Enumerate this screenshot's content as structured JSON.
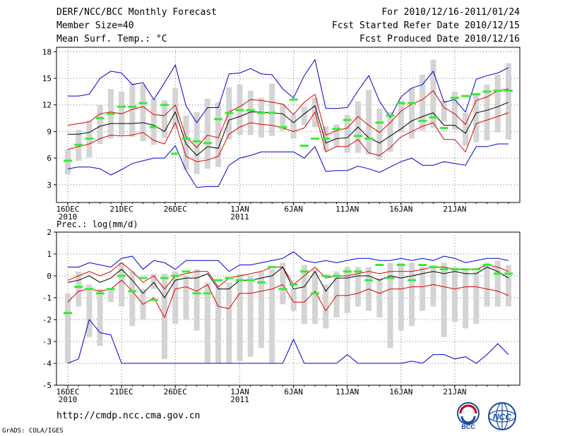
{
  "header": {
    "title": "DERF/NCC/BCC Monthly Forecast",
    "member_size": "Member Size=40",
    "variable": "Mean Surf. Temp.: °C",
    "period": "For 2010/12/16-2011/01/24",
    "fcst_started": "Fcst Started Refer Date 2010/12/15",
    "fcst_produced": "Fcst Produced Date 2010/12/16"
  },
  "footer": {
    "url": "http://cmdp.ncc.cma.gov.cn",
    "grads": "GrADS: COLA/IGES",
    "bcc_logo_text": "BCC",
    "ncc_logo_text": "NCC"
  },
  "colors": {
    "max_line": "#0000cc",
    "spread_lines": "#dd0000",
    "mean_line": "#000000",
    "box": "#d4d4d4",
    "marker": "#33ee33"
  },
  "chart_data": [
    {
      "type": "line",
      "title": "Mean Surf. Temp.: °C",
      "ylim": [
        1,
        18.5
      ],
      "yticks": [
        3,
        6,
        9,
        12,
        15,
        18
      ],
      "xticks": [
        {
          "day": 0,
          "label": "16DEC",
          "sub": "2010"
        },
        {
          "day": 5,
          "label": "21DEC",
          "sub": ""
        },
        {
          "day": 10,
          "label": "26DEC",
          "sub": ""
        },
        {
          "day": 16,
          "label": "1JAN",
          "sub": "2011"
        },
        {
          "day": 21,
          "label": "6JAN",
          "sub": ""
        },
        {
          "day": 26,
          "label": "11JAN",
          "sub": ""
        },
        {
          "day": 31,
          "label": "16JAN",
          "sub": ""
        },
        {
          "day": 36,
          "label": "21JAN",
          "sub": ""
        }
      ],
      "grid": true,
      "series": [
        {
          "name": "max",
          "values": [
            13,
            13,
            13.2,
            15,
            15.8,
            15.6,
            14.3,
            14.5,
            12.6,
            14.5,
            16.5,
            11.9,
            10,
            11.7,
            11.7,
            15.5,
            15.6,
            16.1,
            15.5,
            15.4,
            13.8,
            12.8,
            15.3,
            17.1,
            11.6,
            11.6,
            11.7,
            13.6,
            15.3,
            12.4,
            10.6,
            12.9,
            13.9,
            14.3,
            15.8,
            12.3,
            12.6,
            11.2,
            14.9,
            15.3,
            15.6,
            16.2
          ]
        },
        {
          "name": "upper",
          "values": [
            9.7,
            9.9,
            10.1,
            11,
            11.2,
            11,
            11.5,
            11.8,
            10.9,
            10.8,
            12,
            8.4,
            7.2,
            8.6,
            8.3,
            11.2,
            11.8,
            12.6,
            12.5,
            12.3,
            12.1,
            10.9,
            12.3,
            13.2,
            8.6,
            9.1,
            9.4,
            10.7,
            9.7,
            8.9,
            10,
            11.3,
            12.1,
            12.6,
            13.6,
            11.7,
            11,
            9.8,
            12.5,
            12.9,
            13.6,
            13.8
          ]
        },
        {
          "name": "mean",
          "values": [
            8.7,
            8.7,
            8.9,
            9.6,
            9.9,
            9.9,
            9.9,
            10,
            9.7,
            9,
            11.2,
            7.6,
            6.3,
            7.3,
            7.1,
            10.3,
            10.7,
            11.2,
            11.2,
            11.1,
            11,
            10,
            11,
            11.9,
            7.7,
            8.2,
            8.3,
            9.5,
            8.3,
            7.7,
            8.5,
            9.3,
            10.2,
            10.7,
            11.1,
            9.7,
            9.7,
            8.8,
            11.1,
            11.4,
            11.8,
            12.3
          ]
        },
        {
          "name": "lower",
          "values": [
            7,
            7.3,
            7.6,
            8.2,
            8.6,
            8.5,
            8.6,
            8.9,
            8,
            7.6,
            10,
            6.2,
            5.6,
            5.8,
            6.2,
            8.7,
            9.5,
            10,
            9.8,
            9.7,
            9.4,
            9,
            9.4,
            11.2,
            6.7,
            7.3,
            7.3,
            8.1,
            6.6,
            6.3,
            7.2,
            8.4,
            9,
            9.6,
            10,
            8.1,
            8.1,
            6.7,
            9.9,
            10.3,
            10.7,
            11.1
          ]
        },
        {
          "name": "min",
          "values": [
            4.8,
            5,
            5,
            4.8,
            4.1,
            4.7,
            5.4,
            5.7,
            6,
            6,
            7.4,
            4.6,
            2.7,
            2.8,
            2.8,
            5.2,
            6,
            6.3,
            6.7,
            6.7,
            6.7,
            6.7,
            6,
            7.3,
            4.5,
            4.6,
            4.6,
            5.1,
            4.8,
            4.4,
            5,
            5.6,
            6,
            5.2,
            5.2,
            5.6,
            5.4,
            5.2,
            7.3,
            7.3,
            7.6,
            7.6
          ]
        }
      ],
      "boxes": {
        "low": [
          4.2,
          5.7,
          6.1,
          7.6,
          8.2,
          8.6,
          8.4,
          7.9,
          7.5,
          8.3,
          9.3,
          4.7,
          4.2,
          4.8,
          5,
          8.1,
          8.6,
          8.6,
          8.3,
          8.5,
          9.1,
          8.2,
          9.7,
          9.5,
          6.8,
          7.3,
          6.6,
          6.6,
          6.4,
          5.8,
          6.7,
          8.9,
          8.2,
          9.1,
          9.4,
          10.1,
          9.2,
          7.4,
          7.8,
          8,
          8.9,
          8.1
        ],
        "high": [
          7,
          9.2,
          10.2,
          12,
          13.8,
          13.5,
          14.4,
          14.3,
          12.7,
          12.5,
          13.9,
          10.8,
          11.2,
          12.7,
          12.3,
          14,
          14.3,
          13.6,
          12.8,
          14.4,
          12.1,
          10.9,
          11.8,
          12.8,
          9.6,
          9.8,
          10.9,
          12.4,
          13.7,
          11.6,
          11.2,
          12.5,
          13.9,
          15.4,
          17.1,
          12.5,
          13.5,
          11.1,
          13.1,
          14.3,
          15.4,
          16.7
        ]
      },
      "markers": [
        5.7,
        7.5,
        8.2,
        10.5,
        11,
        11.8,
        11.8,
        12.2,
        9.5,
        12,
        6.5,
        8.2,
        7.9,
        7.7,
        10.4,
        11.1,
        11.4,
        11.4,
        11.1,
        11.1,
        9.5,
        12.6,
        7.4,
        8.2,
        8.2,
        9.3,
        10.3,
        8.5,
        8.2,
        10,
        10.8,
        12.2,
        12.2,
        10.2,
        10.6,
        9.4,
        12.8,
        13,
        13.2,
        13.5,
        13.6,
        13.6
      ]
    },
    {
      "type": "line",
      "title": "Prec.: log(mm/d)",
      "ylim": [
        -5,
        2
      ],
      "yticks": [
        -5,
        -4,
        -3,
        -2,
        -1,
        0,
        1,
        2
      ],
      "xticks": [
        {
          "day": 0,
          "label": "16DEC",
          "sub": "2010"
        },
        {
          "day": 5,
          "label": "21DEC",
          "sub": ""
        },
        {
          "day": 10,
          "label": "26DEC",
          "sub": ""
        },
        {
          "day": 16,
          "label": "1JAN",
          "sub": "2011"
        },
        {
          "day": 21,
          "label": "6JAN",
          "sub": ""
        },
        {
          "day": 26,
          "label": "11JAN",
          "sub": ""
        },
        {
          "day": 31,
          "label": "16JAN",
          "sub": ""
        },
        {
          "day": 36,
          "label": "21JAN",
          "sub": ""
        }
      ],
      "grid": true,
      "series": [
        {
          "name": "max",
          "values": [
            0.4,
            0.4,
            0.6,
            0.5,
            0.4,
            0.8,
            0.9,
            0.3,
            0.7,
            0.6,
            0.3,
            0.7,
            0.7,
            0.7,
            0.7,
            0.2,
            0.5,
            0.5,
            0.6,
            0.7,
            0.8,
            1.1,
            0.7,
            0.6,
            0.7,
            0.6,
            0.7,
            0.8,
            0.8,
            0.7,
            0.7,
            0.8,
            0.7,
            0.8,
            0.7,
            0.9,
            0.8,
            0.6,
            0.7,
            0.8,
            0.8,
            0.7
          ]
        },
        {
          "name": "upper",
          "values": [
            -0.2,
            0,
            0.2,
            0,
            0.2,
            0.6,
            0.2,
            -0.3,
            0,
            -0.6,
            0,
            0.1,
            0.2,
            0.2,
            -0.5,
            -0.1,
            0,
            0.1,
            0.2,
            0.4,
            0.4,
            -0.4,
            0,
            0.4,
            -0.1,
            0,
            0,
            0.1,
            0.2,
            0.1,
            0.2,
            0.2,
            0.2,
            0.3,
            0.4,
            0.4,
            0.3,
            0.3,
            0.3,
            0.5,
            0.4,
            0.2
          ]
        },
        {
          "name": "mean",
          "values": [
            -0.3,
            -0.2,
            0,
            -0.3,
            -0.1,
            0.3,
            -0.2,
            -0.8,
            -0.3,
            -1,
            -0.2,
            -0.1,
            -0.1,
            0.1,
            -0.6,
            -0.6,
            -0.2,
            -0.2,
            -0.1,
            0,
            0.4,
            -0.6,
            -0.5,
            0.2,
            -0.7,
            -0.1,
            -0.1,
            0,
            0,
            -0.2,
            0,
            -0.1,
            0,
            0.1,
            0.2,
            0.1,
            0.2,
            0.1,
            0.1,
            0.4,
            0.2,
            -0.1
          ]
        },
        {
          "name": "lower",
          "values": [
            -1.2,
            -0.7,
            -0.6,
            -0.7,
            -0.6,
            -0.2,
            -0.7,
            -1.3,
            -1,
            -1.9,
            -0.6,
            -0.5,
            -0.7,
            -0.4,
            -1.4,
            -1.5,
            -0.8,
            -0.8,
            -0.7,
            -0.6,
            -0.4,
            -1.2,
            -1.2,
            -0.7,
            -1.6,
            -0.9,
            -0.9,
            -0.8,
            -0.6,
            -0.8,
            -0.6,
            -0.6,
            -0.5,
            -0.5,
            -0.4,
            -0.5,
            -0.6,
            -0.5,
            -0.5,
            -0.6,
            -0.7,
            -0.9
          ]
        },
        {
          "name": "min",
          "values": [
            -4,
            -3.8,
            -2,
            -2.6,
            -2.7,
            -4,
            -4,
            -4,
            -4,
            -4,
            -4,
            -4,
            -4,
            -4,
            -4,
            -4,
            -4,
            -4,
            -4,
            -4,
            -4,
            -2.9,
            -4,
            -4,
            -4,
            -4,
            -3.6,
            -4,
            -4,
            -4,
            -4,
            -4,
            -3.9,
            -4,
            -3.6,
            -3.6,
            -3.8,
            -3.7,
            -4,
            -3.6,
            -3.1,
            -3.6
          ]
        }
      ],
      "boxes": {
        "low": [
          -4,
          -1.4,
          -2.8,
          -3.2,
          -1.2,
          -1.4,
          -2.3,
          -2,
          -0.6,
          -3.8,
          -2.2,
          -2,
          -2.5,
          -4,
          -4,
          -4,
          -3.9,
          -3.7,
          -3.3,
          -4,
          -1.3,
          -1.6,
          -2.2,
          -2.2,
          -2.4,
          -1.9,
          -1.7,
          -1.4,
          -1.6,
          -1.9,
          -3.3,
          -2.5,
          -2.3,
          -1.6,
          -1.4,
          -2.8,
          -2.1,
          -2.4,
          -2.2,
          -1.4,
          -1.4,
          -1.4
        ],
        "high": [
          -0.8,
          0.2,
          -0.4,
          -0.6,
          -0.6,
          0.6,
          0.2,
          -0.6,
          0.1,
          0.1,
          0.2,
          0,
          0.3,
          -0.3,
          -0.5,
          -0.3,
          0.1,
          0,
          0.2,
          0.3,
          0.6,
          -0.6,
          0.5,
          0.3,
          -0.4,
          0.2,
          0.4,
          0.4,
          0.4,
          -0.1,
          0.6,
          0.6,
          0.6,
          0.4,
          0.5,
          0.6,
          0.4,
          0.3,
          0.2,
          0.6,
          0.7,
          0.5
        ]
      },
      "markers": [
        -1.7,
        -0.5,
        -0.6,
        -0.8,
        -0.6,
        0,
        -0.7,
        -0.1,
        -1.1,
        -0.1,
        0,
        0.2,
        -0.8,
        -0.8,
        -0.2,
        -0.1,
        -0.2,
        -0.2,
        -0.3,
        0.4,
        -0.6,
        -0.4,
        0.2,
        -0.8,
        0,
        0,
        0.2,
        0.2,
        -0.2,
        0.5,
        -0.1,
        0.5,
        -0.2,
        0.5,
        0.4,
        0.3,
        0.3,
        0.3,
        0.3,
        0.5,
        0.1,
        0.1
      ]
    }
  ]
}
